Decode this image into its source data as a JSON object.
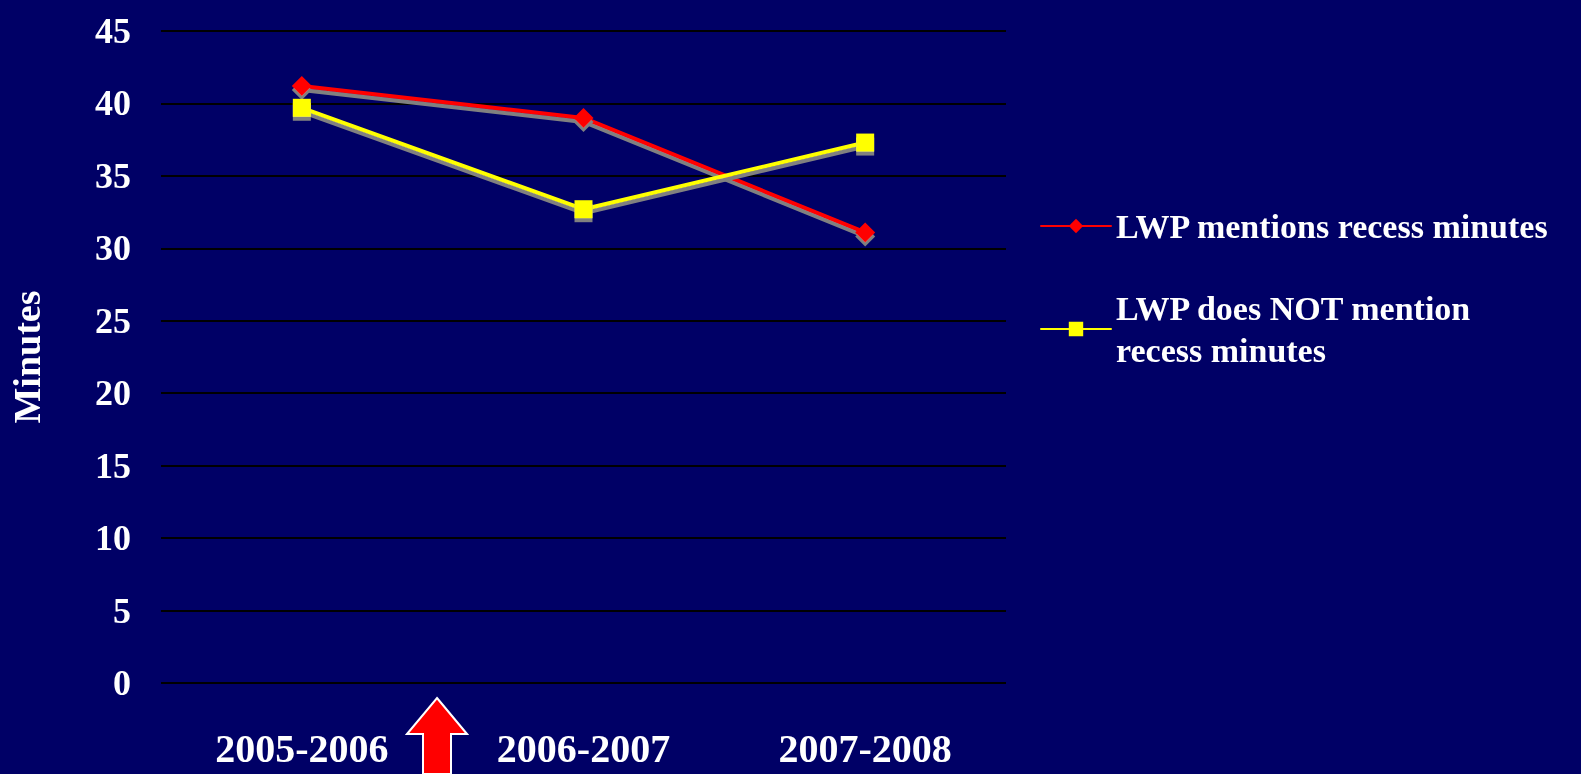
{
  "chart_data": {
    "type": "line",
    "ylabel": "Minutes",
    "categories": [
      "2005-2006",
      "2006-2007",
      "2007-2008"
    ],
    "series": [
      {
        "name": "LWP mentions recess minutes",
        "color": "#ff0000",
        "marker": "diamond",
        "values": [
          41.2,
          39.0,
          31.1
        ]
      },
      {
        "name": "LWP does NOT mention recess minutes",
        "color": "#ffff00",
        "marker": "square",
        "values": [
          39.7,
          32.7,
          37.3
        ]
      }
    ],
    "ylim": [
      0,
      45
    ],
    "yticks": [
      0,
      5,
      10,
      15,
      20,
      25,
      30,
      35,
      40,
      45
    ],
    "grid": "y",
    "legend": "right",
    "line_style": "solid"
  }
}
